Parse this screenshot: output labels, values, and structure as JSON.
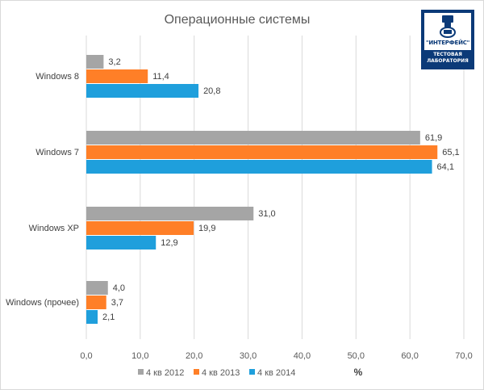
{
  "chart_data": {
    "type": "bar",
    "orientation": "horizontal",
    "title": "Операционные системы",
    "xlabel": "%",
    "ylabel": "",
    "xlim": [
      0,
      70
    ],
    "xticks": [
      "0,0",
      "10,0",
      "20,0",
      "30,0",
      "40,0",
      "50,0",
      "60,0",
      "70,0"
    ],
    "categories": [
      "Windows 8",
      "Windows 7",
      "Windows XP",
      "Windows (прочее)"
    ],
    "series": [
      {
        "name": "4 кв 2012",
        "color": "#a5a5a5",
        "values": [
          3.2,
          61.9,
          31.0,
          4.0
        ],
        "labels": [
          "3,2",
          "61,9",
          "31,0",
          "4,0"
        ]
      },
      {
        "name": "4 кв 2013",
        "color": "#ff7f27",
        "values": [
          11.4,
          65.1,
          19.9,
          3.7
        ],
        "labels": [
          "11,4",
          "65,1",
          "19,9",
          "3,7"
        ]
      },
      {
        "name": "4 кв 2014",
        "color": "#1f9fdc",
        "values": [
          20.8,
          64.1,
          12.9,
          2.1
        ],
        "labels": [
          "20,8",
          "64,1",
          "12,9",
          "2,1"
        ]
      }
    ],
    "grid": true,
    "legend_position": "bottom"
  },
  "logo": {
    "name": "\"ИНТЕРФЕЙС\"",
    "line1": "ТЕСТОВАЯ",
    "line2": "ЛАБОРАТОРИЯ"
  }
}
